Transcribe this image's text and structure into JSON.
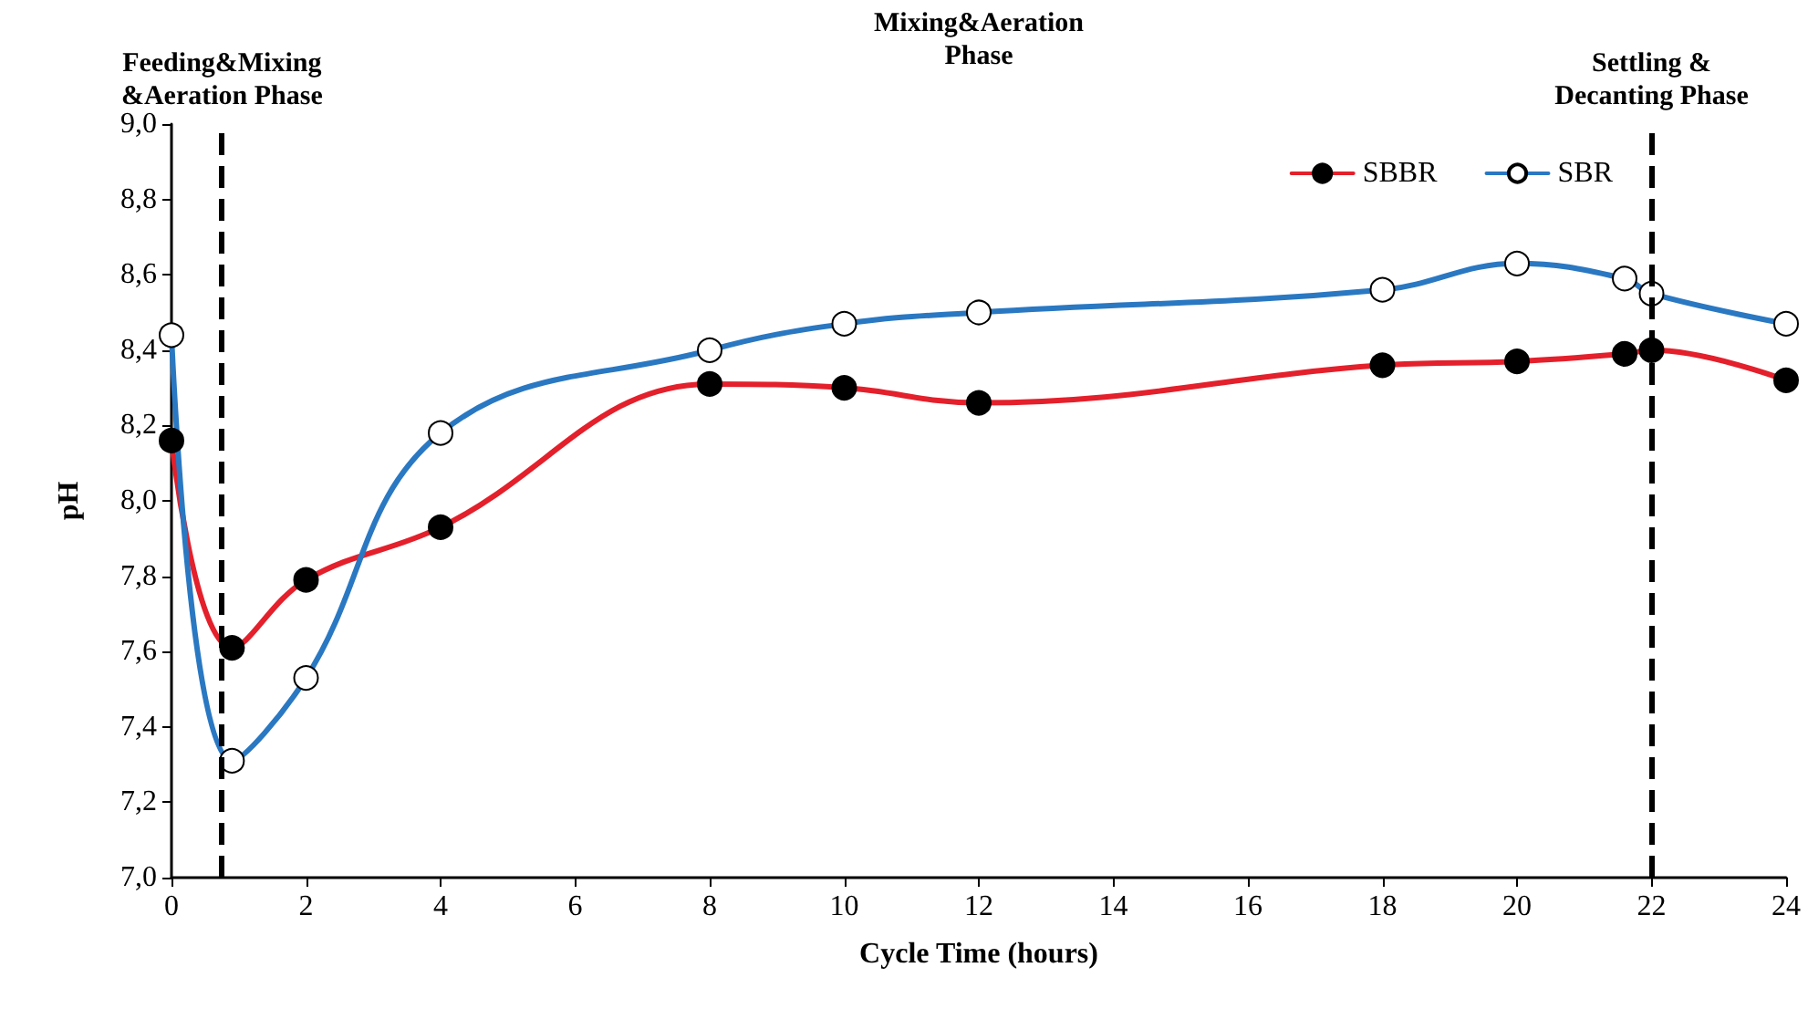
{
  "chart_data": {
    "type": "line",
    "xlabel": "Cycle Time (hours)",
    "ylabel": "pH",
    "series": [
      {
        "name": "SBBR",
        "color": "#e3202b",
        "colors": [
          "#000000",
          "#000000",
          "#000000",
          "#000000",
          "#000000",
          "#000000",
          "#000000",
          "#000000",
          "#000000",
          "#000000",
          "#000000",
          "#000000"
        ],
        "x": [
          0,
          0.9,
          2,
          4,
          8,
          10,
          12,
          18,
          20,
          21.6,
          22,
          24
        ],
        "values": [
          8.16,
          7.61,
          7.79,
          7.93,
          8.31,
          8.3,
          8.26,
          8.36,
          8.37,
          8.39,
          8.4,
          8.32
        ]
      },
      {
        "name": "SBR",
        "color": "#2a78c2",
        "colors": [
          "#ffffff",
          "#ffffff",
          "#ffffff",
          "#ffffff",
          "#ffffff",
          "#ffffff",
          "#ffffff",
          "#ffffff",
          "#ffffff",
          "#ffffff",
          "#ffffff",
          "#ffffff"
        ],
        "x": [
          0,
          0.9,
          2,
          4,
          8,
          10,
          12,
          18,
          20,
          21.6,
          22,
          24
        ],
        "values": [
          8.44,
          7.31,
          7.53,
          8.18,
          8.4,
          8.47,
          8.5,
          8.56,
          8.63,
          8.59,
          8.55,
          8.47
        ]
      }
    ],
    "xlim": [
      0,
      24
    ],
    "xticks": [
      0,
      2,
      4,
      6,
      8,
      10,
      12,
      14,
      16,
      18,
      20,
      22,
      24
    ],
    "ylim": [
      7,
      9
    ],
    "yticks": [
      {
        "value": 7,
        "label": "7,0"
      },
      {
        "value": 7.2,
        "label": "7,2"
      },
      {
        "value": 7.4,
        "label": "7,4"
      },
      {
        "value": 7.6,
        "label": "7,6"
      },
      {
        "value": 7.8,
        "label": "7,8"
      },
      {
        "value": 8,
        "label": "8,0"
      },
      {
        "value": 8.2,
        "label": "8,2"
      },
      {
        "value": 8.4,
        "label": "8,4"
      },
      {
        "value": 8.6,
        "label": "8,6"
      },
      {
        "value": 8.8,
        "label": "8,8"
      },
      {
        "value": 9,
        "label": "9,0"
      }
    ],
    "ref_lines": [
      {
        "axis": "x",
        "value": 0.75,
        "label": "Feeding&Mixing\n&Aeration Phase",
        "color": "#000000",
        "line_style": "dashed"
      },
      {
        "axis": "x",
        "value": 22,
        "label": "Settling &\nDecanting Phase",
        "color": "#000000",
        "line_style": "dashed"
      }
    ],
    "annotations": [
      "Mixing&Aeration\nPhase"
    ],
    "grid": false,
    "legend": "top right",
    "marker": "circle",
    "line_style": "solid"
  }
}
